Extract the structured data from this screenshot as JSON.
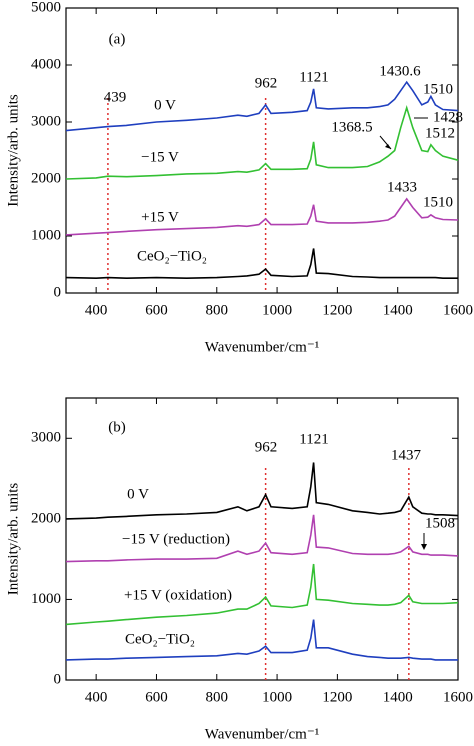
{
  "chart_data": [
    {
      "type": "line",
      "panel_label": "(a)",
      "xlabel": "Wavenumber/cm⁻¹",
      "ylabel": "Intensity/arb. units",
      "x": [
        300,
        400,
        439,
        500,
        600,
        700,
        800,
        870,
        900,
        940,
        962,
        980,
        1050,
        1100,
        1112,
        1121,
        1130,
        1170,
        1250,
        1300,
        1340,
        1368,
        1390,
        1410,
        1430,
        1450,
        1480,
        1500,
        1510,
        1525,
        1550,
        1600
      ],
      "xlim": [
        300,
        1600
      ],
      "xticks": [
        400,
        600,
        800,
        1000,
        1200,
        1400,
        1600
      ],
      "ylim": [
        0,
        5000
      ],
      "yticks": [
        0,
        1000,
        2000,
        3000,
        4000,
        5000
      ],
      "series": [
        {
          "name": "0 V",
          "color": "#1f3fbf",
          "values": [
            2850,
            2900,
            2920,
            2940,
            3000,
            3030,
            3070,
            3120,
            3100,
            3150,
            3300,
            3150,
            3170,
            3200,
            3350,
            3580,
            3250,
            3230,
            3250,
            3250,
            3270,
            3300,
            3400,
            3550,
            3700,
            3550,
            3300,
            3350,
            3450,
            3300,
            3220,
            3200
          ]
        },
        {
          "name": "−15 V",
          "color": "#33c033",
          "values": [
            2000,
            2020,
            2050,
            2040,
            2060,
            2090,
            2100,
            2130,
            2120,
            2160,
            2270,
            2170,
            2170,
            2180,
            2350,
            2650,
            2250,
            2200,
            2200,
            2220,
            2300,
            2400,
            2500,
            2900,
            3250,
            2900,
            2500,
            2480,
            2600,
            2500,
            2400,
            2330
          ]
        },
        {
          "name": "+15 V",
          "color": "#b040b0",
          "values": [
            1020,
            1050,
            1060,
            1080,
            1110,
            1130,
            1150,
            1180,
            1170,
            1200,
            1300,
            1200,
            1200,
            1210,
            1350,
            1550,
            1260,
            1230,
            1230,
            1240,
            1260,
            1280,
            1350,
            1500,
            1650,
            1500,
            1320,
            1330,
            1370,
            1320,
            1290,
            1280
          ]
        },
        {
          "name": "CeO₂−TiO₂",
          "color": "#000000",
          "values": [
            270,
            260,
            270,
            260,
            270,
            260,
            270,
            290,
            300,
            330,
            420,
            310,
            290,
            300,
            500,
            780,
            350,
            340,
            290,
            280,
            270,
            270,
            270,
            270,
            270,
            270,
            270,
            270,
            270,
            270,
            260,
            260
          ]
        }
      ],
      "vlines": [
        439,
        962
      ],
      "annotations": [
        "439",
        "962",
        "1121",
        "1430.6",
        "1510",
        "1368.5",
        "1428",
        "1512",
        "1433",
        "1510"
      ]
    },
    {
      "type": "line",
      "panel_label": "(b)",
      "xlabel": "Wavenumber/cm⁻¹",
      "ylabel": "Intensity/arb. units",
      "x": [
        300,
        400,
        439,
        500,
        600,
        700,
        800,
        870,
        900,
        940,
        962,
        980,
        1050,
        1100,
        1112,
        1121,
        1130,
        1170,
        1250,
        1300,
        1340,
        1368,
        1390,
        1410,
        1437,
        1450,
        1480,
        1500,
        1510,
        1525,
        1550,
        1600
      ],
      "xlim": [
        300,
        1600
      ],
      "xticks": [
        400,
        600,
        800,
        1000,
        1200,
        1400,
        1600
      ],
      "ylim": [
        0,
        3500
      ],
      "yticks": [
        0,
        1000,
        2000,
        3000
      ],
      "series": [
        {
          "name": "0 V",
          "color": "#000000",
          "values": [
            2000,
            2010,
            2020,
            2030,
            2050,
            2060,
            2080,
            2150,
            2100,
            2150,
            2300,
            2150,
            2130,
            2150,
            2400,
            2700,
            2200,
            2180,
            2100,
            2080,
            2060,
            2070,
            2080,
            2100,
            2270,
            2150,
            2070,
            2060,
            2060,
            2050,
            2050,
            2040
          ]
        },
        {
          "name": "−15 V (reduction)",
          "color": "#b040b0",
          "values": [
            1470,
            1480,
            1480,
            1490,
            1500,
            1500,
            1510,
            1600,
            1560,
            1600,
            1700,
            1580,
            1560,
            1580,
            1800,
            2050,
            1650,
            1640,
            1570,
            1560,
            1560,
            1560,
            1570,
            1590,
            1660,
            1590,
            1560,
            1560,
            1550,
            1550,
            1550,
            1540
          ]
        },
        {
          "name": "+15 V  (oxidation)",
          "color": "#33c033",
          "values": [
            690,
            720,
            730,
            750,
            780,
            800,
            830,
            880,
            880,
            950,
            1030,
            920,
            900,
            930,
            1150,
            1440,
            1000,
            990,
            950,
            940,
            930,
            930,
            940,
            960,
            1050,
            970,
            950,
            950,
            950,
            950,
            950,
            960
          ]
        },
        {
          "name": "CeO₂−TiO₂",
          "color": "#1f3fbf",
          "values": [
            250,
            260,
            260,
            270,
            280,
            290,
            300,
            330,
            320,
            360,
            420,
            340,
            340,
            370,
            520,
            750,
            400,
            400,
            320,
            290,
            280,
            270,
            270,
            270,
            280,
            270,
            260,
            260,
            260,
            250,
            250,
            250
          ]
        }
      ],
      "vlines": [
        962,
        1437
      ],
      "annotations": [
        "962",
        "1121",
        "1437",
        "1508"
      ]
    }
  ]
}
